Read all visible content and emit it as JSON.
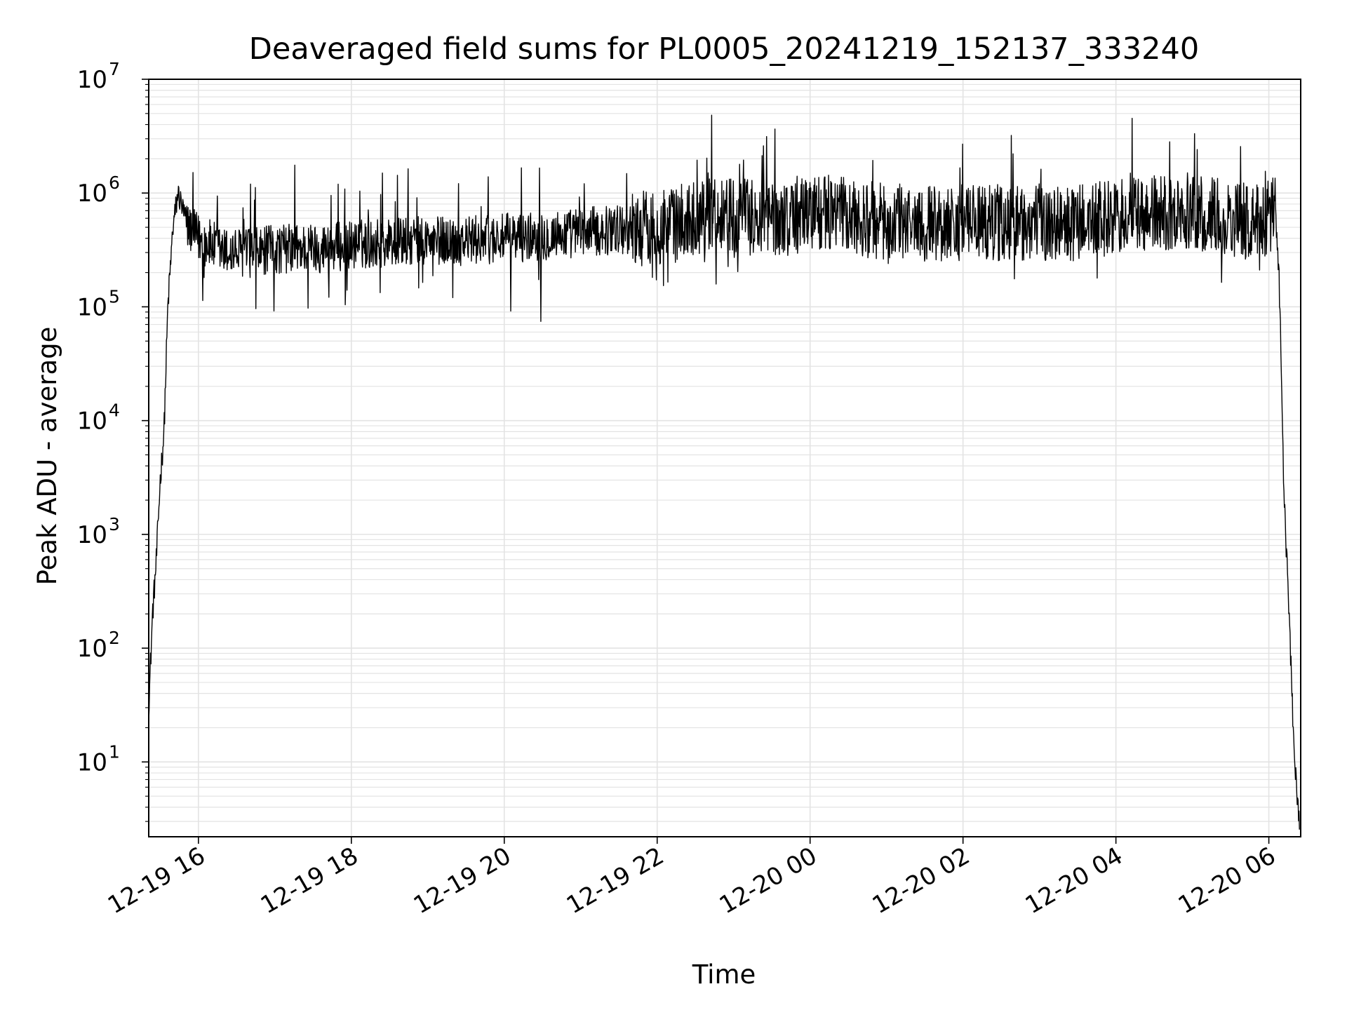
{
  "chart_data": {
    "type": "line",
    "title": "Deaveraged field sums for PL0005_20241219_152137_333240",
    "xlabel": "Time",
    "ylabel": "Peak ADU - average",
    "yscale": "log",
    "xlim": [
      "2024-12-19 15:21",
      "2024-12-20 06:25"
    ],
    "ylim": [
      2.2,
      10000000
    ],
    "grid": true,
    "x_ticks": [
      {
        "label": "12-19 16",
        "value": "2024-12-19 16:00"
      },
      {
        "label": "12-19 18",
        "value": "2024-12-19 18:00"
      },
      {
        "label": "12-19 20",
        "value": "2024-12-19 20:00"
      },
      {
        "label": "12-19 22",
        "value": "2024-12-19 22:00"
      },
      {
        "label": "12-20 00",
        "value": "2024-12-20 00:00"
      },
      {
        "label": "12-20 02",
        "value": "2024-12-20 02:00"
      },
      {
        "label": "12-20 04",
        "value": "2024-12-20 04:00"
      },
      {
        "label": "12-20 06",
        "value": "2024-12-20 06:00"
      }
    ],
    "y_ticks": [
      {
        "base": "10",
        "exp": "1",
        "value": 10
      },
      {
        "base": "10",
        "exp": "2",
        "value": 100
      },
      {
        "base": "10",
        "exp": "3",
        "value": 1000
      },
      {
        "base": "10",
        "exp": "4",
        "value": 10000
      },
      {
        "base": "10",
        "exp": "5",
        "value": 100000
      },
      {
        "base": "10",
        "exp": "6",
        "value": 1000000
      },
      {
        "base": "10",
        "exp": "7",
        "value": 10000000
      }
    ],
    "line_color": "#000000",
    "grid_color": "#e3e3e3",
    "series": [
      {
        "x": [
          "2024-12-19 15:21",
          "2024-12-19 15:24",
          "2024-12-19 15:27",
          "2024-12-19 15:30",
          "2024-12-19 15:33",
          "2024-12-19 15:36",
          "2024-12-19 15:40",
          "2024-12-19 15:44",
          "2024-12-19 15:48",
          "2024-12-19 15:52",
          "2024-12-19 16:00",
          "2024-12-19 16:10",
          "2024-12-19 16:20",
          "2024-12-19 16:30",
          "2024-12-19 16:45",
          "2024-12-19 17:00",
          "2024-12-19 17:20",
          "2024-12-19 17:40",
          "2024-12-19 18:00",
          "2024-12-19 18:30",
          "2024-12-19 19:00",
          "2024-12-19 19:30",
          "2024-12-19 20:00",
          "2024-12-19 20:30",
          "2024-12-19 21:00",
          "2024-12-19 21:30",
          "2024-12-19 22:00",
          "2024-12-19 22:20",
          "2024-12-19 22:40",
          "2024-12-19 23:00",
          "2024-12-19 23:20",
          "2024-12-19 23:40",
          "2024-12-20 00:00",
          "2024-12-20 00:20",
          "2024-12-20 00:40",
          "2024-12-20 01:00",
          "2024-12-20 01:30",
          "2024-12-20 02:00",
          "2024-12-20 02:30",
          "2024-12-20 03:00",
          "2024-12-20 03:30",
          "2024-12-20 04:00",
          "2024-12-20 04:30",
          "2024-12-20 05:00",
          "2024-12-20 05:30",
          "2024-12-20 05:50",
          "2024-12-20 06:00",
          "2024-12-20 06:05",
          "2024-12-20 06:08",
          "2024-12-20 06:12",
          "2024-12-20 06:16",
          "2024-12-20 06:20",
          "2024-12-20 06:24"
        ],
        "y": [
          30,
          200,
          600,
          3000,
          8000,
          100000,
          500000,
          1000000,
          700000,
          500000,
          400000,
          350000,
          300000,
          300000,
          300000,
          320000,
          330000,
          330000,
          350000,
          370000,
          380000,
          380000,
          400000,
          420000,
          450000,
          480000,
          500000,
          550000,
          700000,
          650000,
          600000,
          600000,
          700000,
          650000,
          600000,
          550000,
          550000,
          550000,
          550000,
          550000,
          550000,
          600000,
          650000,
          650000,
          600000,
          550000,
          600000,
          800000,
          200000,
          2000,
          200,
          10,
          3
        ]
      }
    ]
  }
}
